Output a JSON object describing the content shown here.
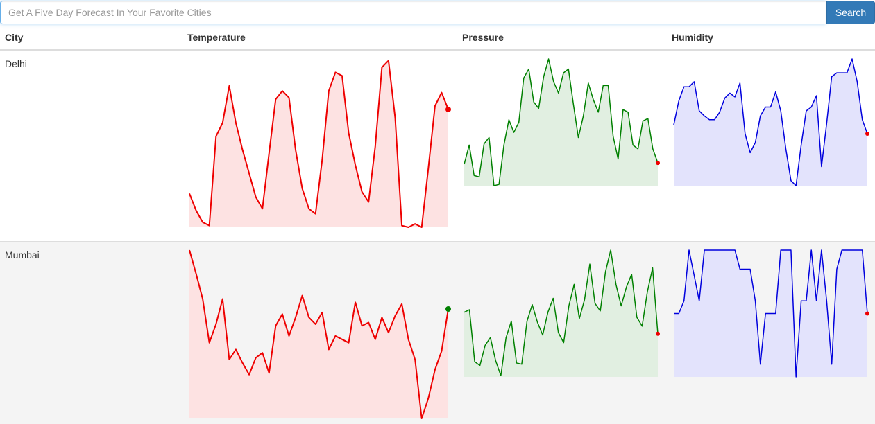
{
  "search": {
    "placeholder": "Get A Five Day Forecast In Your Favorite Cities",
    "value": "",
    "button_label": "Search"
  },
  "table": {
    "headers": [
      "City",
      "Temperature",
      "Pressure",
      "Humidity"
    ],
    "rows": [
      {
        "city": "Delhi",
        "temperature": [
          0.2,
          0.1,
          0.03,
          0.01,
          0.54,
          0.62,
          0.84,
          0.62,
          0.46,
          0.32,
          0.18,
          0.11,
          0.44,
          0.76,
          0.81,
          0.77,
          0.46,
          0.23,
          0.11,
          0.08,
          0.4,
          0.81,
          0.92,
          0.9,
          0.56,
          0.37,
          0.21,
          0.15,
          0.48,
          0.95,
          0.99,
          0.65,
          0.01,
          0.0,
          0.02,
          0.0,
          0.35,
          0.72,
          0.8,
          0.7
        ],
        "pressure": [
          0.17,
          0.32,
          0.08,
          0.07,
          0.33,
          0.38,
          0.0,
          0.01,
          0.32,
          0.52,
          0.42,
          0.5,
          0.85,
          0.92,
          0.66,
          0.61,
          0.86,
          1.0,
          0.82,
          0.73,
          0.89,
          0.92,
          0.64,
          0.38,
          0.55,
          0.81,
          0.68,
          0.58,
          0.79,
          0.79,
          0.39,
          0.21,
          0.6,
          0.58,
          0.32,
          0.29,
          0.51,
          0.53,
          0.29,
          0.18
        ],
        "humidity": [
          0.48,
          0.67,
          0.78,
          0.78,
          0.82,
          0.59,
          0.55,
          0.52,
          0.52,
          0.58,
          0.69,
          0.73,
          0.7,
          0.81,
          0.41,
          0.26,
          0.34,
          0.55,
          0.62,
          0.62,
          0.74,
          0.59,
          0.29,
          0.04,
          0.0,
          0.32,
          0.59,
          0.62,
          0.71,
          0.15,
          0.49,
          0.86,
          0.89,
          0.89,
          0.89,
          1.0,
          0.82,
          0.52,
          0.41
        ]
      },
      {
        "city": "Mumbai",
        "temperature": [
          1.0,
          0.86,
          0.71,
          0.45,
          0.56,
          0.71,
          0.35,
          0.41,
          0.33,
          0.26,
          0.36,
          0.39,
          0.27,
          0.55,
          0.62,
          0.49,
          0.6,
          0.73,
          0.6,
          0.56,
          0.63,
          0.41,
          0.49,
          0.47,
          0.45,
          0.69,
          0.55,
          0.57,
          0.47,
          0.6,
          0.51,
          0.61,
          0.68,
          0.47,
          0.35,
          0.0,
          0.12,
          0.29,
          0.4,
          0.65
        ],
        "pressure": [
          0.51,
          0.53,
          0.12,
          0.09,
          0.25,
          0.31,
          0.13,
          0.01,
          0.31,
          0.44,
          0.11,
          0.1,
          0.44,
          0.57,
          0.43,
          0.33,
          0.51,
          0.62,
          0.35,
          0.27,
          0.56,
          0.73,
          0.46,
          0.61,
          0.89,
          0.58,
          0.52,
          0.83,
          1.0,
          0.73,
          0.56,
          0.71,
          0.81,
          0.47,
          0.4,
          0.67,
          0.86,
          0.34
        ],
        "humidity": [
          0.5,
          0.5,
          0.6,
          1.0,
          0.8,
          0.6,
          1.0,
          1.0,
          1.0,
          1.0,
          1.0,
          1.0,
          1.0,
          0.85,
          0.85,
          0.85,
          0.6,
          0.1,
          0.5,
          0.5,
          0.5,
          1.0,
          1.0,
          1.0,
          0.0,
          0.6,
          0.6,
          1.0,
          0.6,
          1.0,
          0.6,
          0.1,
          0.85,
          1.0,
          1.0,
          1.0,
          1.0,
          1.0,
          0.5
        ]
      }
    ]
  },
  "colors": {
    "temperature": "#ee0000",
    "temperature_fill": "#fde2e2",
    "pressure": "#008000",
    "pressure_fill": "#e1efe1",
    "humidity": "#0000dd",
    "humidity_fill": "#e3e3fc",
    "endpoint_delhi_temperature": "#ee0000",
    "endpoint_mumbai_temperature": "#008000",
    "endpoint_default": "#ee0000",
    "button": "#337ab7"
  }
}
